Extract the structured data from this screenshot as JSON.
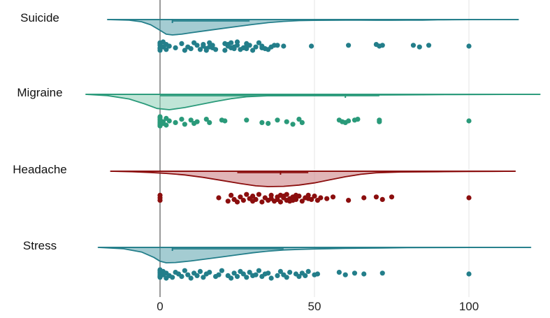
{
  "chart_data": {
    "type": "raincloud",
    "title": "",
    "xlabel": "",
    "ylabel": "",
    "xlim": [
      -23,
      123
    ],
    "x_ticks": [
      {
        "value": 0,
        "label": "0"
      },
      {
        "value": 50,
        "label": "50"
      },
      {
        "value": 100,
        "label": "100"
      }
    ],
    "grid": "vertical-major",
    "series": [
      {
        "name": "Suicide",
        "color": "#237e8a",
        "fill": "#5aa3ad",
        "density_range": [
          -17,
          116
        ],
        "density": [
          [
            -17,
            0
          ],
          [
            -10,
            0.04
          ],
          [
            -6,
            0.14
          ],
          [
            -3,
            0.34
          ],
          [
            0,
            0.7
          ],
          [
            2,
            0.95
          ],
          [
            4,
            1
          ],
          [
            7,
            0.95
          ],
          [
            10,
            0.86
          ],
          [
            15,
            0.72
          ],
          [
            20,
            0.58
          ],
          [
            25,
            0.45
          ],
          [
            30,
            0.32
          ],
          [
            35,
            0.2
          ],
          [
            40,
            0.12
          ],
          [
            45,
            0.07
          ],
          [
            50,
            0.05
          ],
          [
            55,
            0.045
          ],
          [
            60,
            0.04
          ],
          [
            65,
            0.04
          ],
          [
            70,
            0.045
          ],
          [
            75,
            0.045
          ],
          [
            80,
            0.035
          ],
          [
            85,
            0.035
          ],
          [
            90,
            0.02
          ],
          [
            95,
            0.01
          ],
          [
            100,
            0.005
          ],
          [
            108,
            0
          ],
          [
            116,
            0
          ]
        ],
        "median": 4,
        "iqr": [
          4,
          29
        ],
        "points": [
          0,
          0,
          0,
          0,
          0,
          0,
          1,
          1,
          2,
          2,
          3,
          5,
          7,
          8,
          9,
          10,
          11,
          12,
          13,
          14,
          14,
          15,
          15,
          16,
          16,
          17,
          17,
          18,
          21,
          21,
          22,
          22,
          23,
          23,
          24,
          24,
          25,
          25,
          26,
          27,
          28,
          28,
          28,
          29,
          30,
          31,
          32,
          33,
          33,
          34,
          35,
          36,
          37,
          38,
          40,
          49,
          61,
          70,
          71,
          72,
          82,
          84,
          87,
          100
        ],
        "jitter": [
          -4,
          2,
          -1,
          5,
          3,
          -3,
          1,
          -5,
          -2,
          4,
          0,
          2,
          -3,
          5,
          1,
          3,
          -4,
          -1,
          4,
          0,
          -2,
          3,
          5,
          -4,
          1,
          -1,
          2,
          4,
          -3,
          5,
          0,
          -2,
          2,
          -4,
          1,
          3,
          -1,
          -5,
          4,
          2,
          0,
          -3,
          3,
          -1,
          5,
          1,
          -4,
          2,
          0,
          3,
          4,
          1,
          -1,
          -1,
          0,
          0,
          -1,
          -2,
          0,
          -1,
          -1,
          1,
          -1,
          0
        ]
      },
      {
        "name": "Migraine",
        "color": "#2a9a7a",
        "fill": "#8ccfb6",
        "density_range": [
          -24,
          123
        ],
        "density": [
          [
            -24,
            0
          ],
          [
            -17,
            0.08
          ],
          [
            -10,
            0.3
          ],
          [
            -5,
            0.62
          ],
          [
            -1,
            0.92
          ],
          [
            3,
            1
          ],
          [
            8,
            0.86
          ],
          [
            13,
            0.66
          ],
          [
            18,
            0.46
          ],
          [
            23,
            0.28
          ],
          [
            28,
            0.16
          ],
          [
            35,
            0.09
          ],
          [
            45,
            0.06
          ],
          [
            55,
            0.05
          ],
          [
            65,
            0.045
          ],
          [
            75,
            0.035
          ],
          [
            85,
            0.025
          ],
          [
            95,
            0.015
          ],
          [
            105,
            0.008
          ],
          [
            112,
            0.003
          ],
          [
            123,
            0
          ]
        ],
        "median": 60,
        "iqr": [
          0,
          71
        ],
        "points": [
          0,
          0,
          0,
          0,
          0,
          0,
          0,
          1,
          1,
          2,
          2,
          3,
          5,
          7,
          8,
          10,
          11,
          12,
          15,
          16,
          20,
          21,
          28,
          33,
          35,
          38,
          41,
          43,
          45,
          46,
          58,
          59,
          60,
          61,
          63,
          64,
          71,
          71,
          100
        ],
        "jitter": [
          -5,
          -2,
          0,
          2,
          4,
          6,
          -4,
          1,
          3,
          -3,
          5,
          0,
          2,
          -2,
          4,
          -1,
          3,
          1,
          -2,
          2,
          -1,
          0,
          -1,
          2,
          3,
          -1,
          1,
          4,
          -2,
          2,
          -1,
          1,
          2,
          0,
          -1,
          -2,
          -1,
          1,
          0
        ]
      },
      {
        "name": "Headache",
        "color": "#8b0e0e",
        "fill": "#c8797b",
        "density_range": [
          -16,
          115
        ],
        "density": [
          [
            -16,
            0
          ],
          [
            -9,
            0.03
          ],
          [
            -3,
            0.08
          ],
          [
            2,
            0.14
          ],
          [
            8,
            0.24
          ],
          [
            14,
            0.4
          ],
          [
            20,
            0.6
          ],
          [
            26,
            0.8
          ],
          [
            31,
            0.95
          ],
          [
            35,
            1
          ],
          [
            40,
            0.98
          ],
          [
            45,
            0.9
          ],
          [
            50,
            0.76
          ],
          [
            55,
            0.56
          ],
          [
            60,
            0.36
          ],
          [
            65,
            0.2
          ],
          [
            70,
            0.1
          ],
          [
            78,
            0.05
          ],
          [
            90,
            0.03
          ],
          [
            100,
            0.02
          ],
          [
            108,
            0.008
          ],
          [
            115,
            0
          ]
        ],
        "median": 39,
        "iqr": [
          25,
          48
        ],
        "points": [
          0,
          0,
          0,
          19,
          22,
          23,
          24,
          25,
          26,
          27,
          28,
          29,
          30,
          30,
          31,
          32,
          33,
          34,
          35,
          36,
          36,
          37,
          38,
          38,
          39,
          39,
          40,
          40,
          41,
          41,
          42,
          42,
          43,
          43,
          44,
          44,
          45,
          46,
          47,
          48,
          48,
          49,
          50,
          51,
          52,
          54,
          56,
          61,
          66,
          70,
          72,
          75,
          100
        ],
        "jitter": [
          -3,
          0,
          3,
          0,
          4,
          -3,
          2,
          5,
          -1,
          3,
          -4,
          1,
          4,
          -2,
          2,
          -4,
          5,
          0,
          3,
          -3,
          1,
          4,
          -1,
          2,
          -3,
          5,
          0,
          -2,
          3,
          -4,
          1,
          4,
          -1,
          3,
          -3,
          2,
          -2,
          4,
          0,
          -3,
          1,
          2,
          -2,
          3,
          0,
          1,
          -1,
          3,
          0,
          -1,
          2,
          -1,
          0
        ]
      },
      {
        "name": "Stress",
        "color": "#237e8a",
        "fill": "#5aa3ad",
        "density_range": [
          -20,
          120
        ],
        "density": [
          [
            -20,
            0
          ],
          [
            -12,
            0.08
          ],
          [
            -6,
            0.3
          ],
          [
            -2,
            0.65
          ],
          [
            0,
            0.9
          ],
          [
            2,
            1
          ],
          [
            5,
            0.98
          ],
          [
            10,
            0.88
          ],
          [
            15,
            0.75
          ],
          [
            20,
            0.62
          ],
          [
            25,
            0.48
          ],
          [
            30,
            0.35
          ],
          [
            35,
            0.24
          ],
          [
            40,
            0.17
          ],
          [
            45,
            0.13
          ],
          [
            50,
            0.1
          ],
          [
            55,
            0.08
          ],
          [
            60,
            0.065
          ],
          [
            65,
            0.05
          ],
          [
            72,
            0.035
          ],
          [
            80,
            0.02
          ],
          [
            90,
            0.01
          ],
          [
            100,
            0.005
          ],
          [
            110,
            0.002
          ],
          [
            120,
            0
          ]
        ],
        "median": 4,
        "iqr": [
          4,
          40
        ],
        "points": [
          0,
          0,
          0,
          0,
          0,
          0,
          0,
          1,
          1,
          2,
          2,
          3,
          4,
          5,
          6,
          7,
          8,
          9,
          10,
          11,
          12,
          13,
          14,
          15,
          16,
          18,
          19,
          20,
          22,
          23,
          24,
          25,
          26,
          27,
          28,
          29,
          30,
          31,
          32,
          33,
          34,
          35,
          36,
          38,
          39,
          40,
          41,
          42,
          44,
          45,
          46,
          47,
          48,
          50,
          51,
          58,
          60,
          63,
          66,
          72,
          100
        ],
        "jitter": [
          -5,
          -2,
          0,
          2,
          4,
          -4,
          3,
          1,
          -3,
          5,
          -1,
          2,
          4,
          -2,
          0,
          3,
          -4,
          1,
          5,
          -1,
          2,
          -3,
          4,
          0,
          -2,
          3,
          1,
          -4,
          2,
          5,
          -1,
          3,
          -3,
          0,
          4,
          -2,
          2,
          1,
          -4,
          3,
          0,
          -1,
          5,
          2,
          -3,
          1,
          4,
          -2,
          0,
          3,
          -1,
          2,
          -3,
          1,
          0,
          -2,
          1,
          -1,
          0,
          -1,
          0
        ]
      }
    ]
  }
}
